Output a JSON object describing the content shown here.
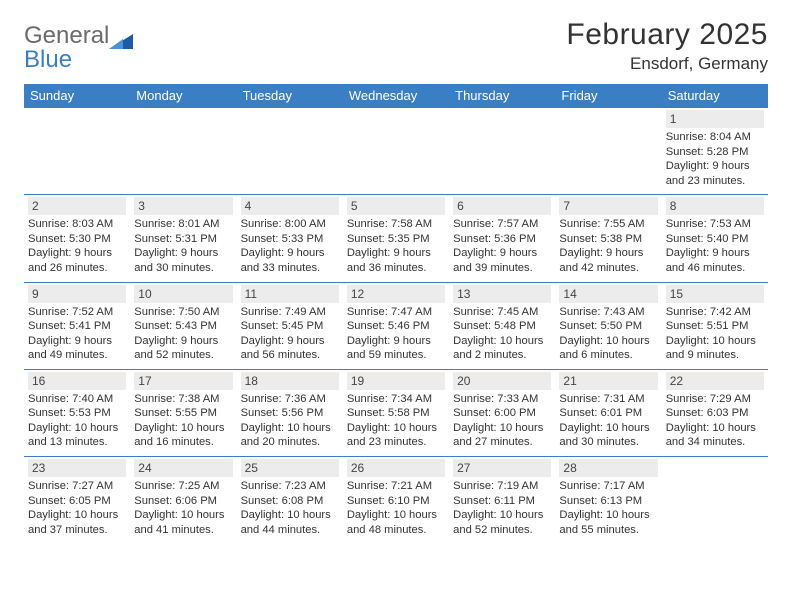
{
  "brand": {
    "word1": "General",
    "word2": "Blue",
    "tri_color": "#1e5aa6"
  },
  "title": "February 2025",
  "location": "Ensdorf, Germany",
  "colors": {
    "header_bg": "#3a7fc4",
    "row_border": "#3a7fc4",
    "daynum_bg": "#ececec",
    "text": "#333333"
  },
  "typography": {
    "title_fontsize_pt": 22,
    "location_fontsize_pt": 13,
    "header_fontsize_pt": 10,
    "body_fontsize_pt": 8.5
  },
  "week_headers": [
    "Sunday",
    "Monday",
    "Tuesday",
    "Wednesday",
    "Thursday",
    "Friday",
    "Saturday"
  ],
  "grid": [
    [
      null,
      null,
      null,
      null,
      null,
      null,
      {
        "day": "1",
        "sunrise": "Sunrise: 8:04 AM",
        "sunset": "Sunset: 5:28 PM",
        "daylight": "Daylight: 9 hours and 23 minutes."
      }
    ],
    [
      {
        "day": "2",
        "sunrise": "Sunrise: 8:03 AM",
        "sunset": "Sunset: 5:30 PM",
        "daylight": "Daylight: 9 hours and 26 minutes."
      },
      {
        "day": "3",
        "sunrise": "Sunrise: 8:01 AM",
        "sunset": "Sunset: 5:31 PM",
        "daylight": "Daylight: 9 hours and 30 minutes."
      },
      {
        "day": "4",
        "sunrise": "Sunrise: 8:00 AM",
        "sunset": "Sunset: 5:33 PM",
        "daylight": "Daylight: 9 hours and 33 minutes."
      },
      {
        "day": "5",
        "sunrise": "Sunrise: 7:58 AM",
        "sunset": "Sunset: 5:35 PM",
        "daylight": "Daylight: 9 hours and 36 minutes."
      },
      {
        "day": "6",
        "sunrise": "Sunrise: 7:57 AM",
        "sunset": "Sunset: 5:36 PM",
        "daylight": "Daylight: 9 hours and 39 minutes."
      },
      {
        "day": "7",
        "sunrise": "Sunrise: 7:55 AM",
        "sunset": "Sunset: 5:38 PM",
        "daylight": "Daylight: 9 hours and 42 minutes."
      },
      {
        "day": "8",
        "sunrise": "Sunrise: 7:53 AM",
        "sunset": "Sunset: 5:40 PM",
        "daylight": "Daylight: 9 hours and 46 minutes."
      }
    ],
    [
      {
        "day": "9",
        "sunrise": "Sunrise: 7:52 AM",
        "sunset": "Sunset: 5:41 PM",
        "daylight": "Daylight: 9 hours and 49 minutes."
      },
      {
        "day": "10",
        "sunrise": "Sunrise: 7:50 AM",
        "sunset": "Sunset: 5:43 PM",
        "daylight": "Daylight: 9 hours and 52 minutes."
      },
      {
        "day": "11",
        "sunrise": "Sunrise: 7:49 AM",
        "sunset": "Sunset: 5:45 PM",
        "daylight": "Daylight: 9 hours and 56 minutes."
      },
      {
        "day": "12",
        "sunrise": "Sunrise: 7:47 AM",
        "sunset": "Sunset: 5:46 PM",
        "daylight": "Daylight: 9 hours and 59 minutes."
      },
      {
        "day": "13",
        "sunrise": "Sunrise: 7:45 AM",
        "sunset": "Sunset: 5:48 PM",
        "daylight": "Daylight: 10 hours and 2 minutes."
      },
      {
        "day": "14",
        "sunrise": "Sunrise: 7:43 AM",
        "sunset": "Sunset: 5:50 PM",
        "daylight": "Daylight: 10 hours and 6 minutes."
      },
      {
        "day": "15",
        "sunrise": "Sunrise: 7:42 AM",
        "sunset": "Sunset: 5:51 PM",
        "daylight": "Daylight: 10 hours and 9 minutes."
      }
    ],
    [
      {
        "day": "16",
        "sunrise": "Sunrise: 7:40 AM",
        "sunset": "Sunset: 5:53 PM",
        "daylight": "Daylight: 10 hours and 13 minutes."
      },
      {
        "day": "17",
        "sunrise": "Sunrise: 7:38 AM",
        "sunset": "Sunset: 5:55 PM",
        "daylight": "Daylight: 10 hours and 16 minutes."
      },
      {
        "day": "18",
        "sunrise": "Sunrise: 7:36 AM",
        "sunset": "Sunset: 5:56 PM",
        "daylight": "Daylight: 10 hours and 20 minutes."
      },
      {
        "day": "19",
        "sunrise": "Sunrise: 7:34 AM",
        "sunset": "Sunset: 5:58 PM",
        "daylight": "Daylight: 10 hours and 23 minutes."
      },
      {
        "day": "20",
        "sunrise": "Sunrise: 7:33 AM",
        "sunset": "Sunset: 6:00 PM",
        "daylight": "Daylight: 10 hours and 27 minutes."
      },
      {
        "day": "21",
        "sunrise": "Sunrise: 7:31 AM",
        "sunset": "Sunset: 6:01 PM",
        "daylight": "Daylight: 10 hours and 30 minutes."
      },
      {
        "day": "22",
        "sunrise": "Sunrise: 7:29 AM",
        "sunset": "Sunset: 6:03 PM",
        "daylight": "Daylight: 10 hours and 34 minutes."
      }
    ],
    [
      {
        "day": "23",
        "sunrise": "Sunrise: 7:27 AM",
        "sunset": "Sunset: 6:05 PM",
        "daylight": "Daylight: 10 hours and 37 minutes."
      },
      {
        "day": "24",
        "sunrise": "Sunrise: 7:25 AM",
        "sunset": "Sunset: 6:06 PM",
        "daylight": "Daylight: 10 hours and 41 minutes."
      },
      {
        "day": "25",
        "sunrise": "Sunrise: 7:23 AM",
        "sunset": "Sunset: 6:08 PM",
        "daylight": "Daylight: 10 hours and 44 minutes."
      },
      {
        "day": "26",
        "sunrise": "Sunrise: 7:21 AM",
        "sunset": "Sunset: 6:10 PM",
        "daylight": "Daylight: 10 hours and 48 minutes."
      },
      {
        "day": "27",
        "sunrise": "Sunrise: 7:19 AM",
        "sunset": "Sunset: 6:11 PM",
        "daylight": "Daylight: 10 hours and 52 minutes."
      },
      {
        "day": "28",
        "sunrise": "Sunrise: 7:17 AM",
        "sunset": "Sunset: 6:13 PM",
        "daylight": "Daylight: 10 hours and 55 minutes."
      },
      null
    ]
  ]
}
